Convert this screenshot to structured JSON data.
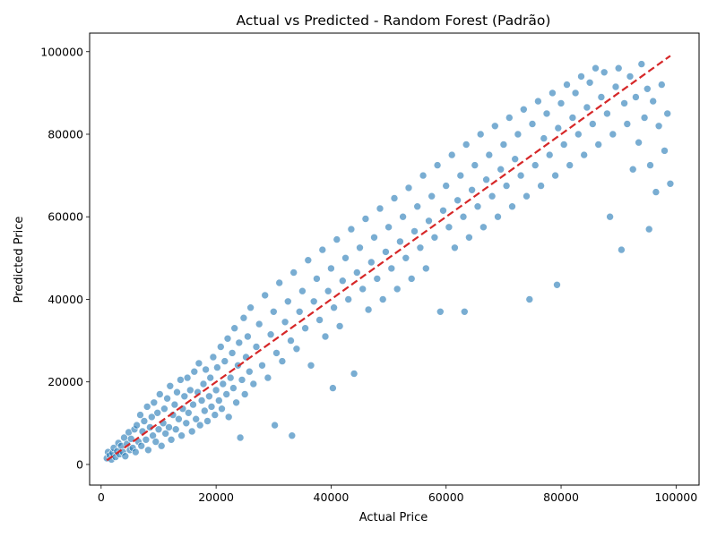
{
  "chart_data": {
    "type": "scatter",
    "title": "Actual vs Predicted - Random Forest (Padrão)",
    "xlabel": "Actual Price",
    "ylabel": "Predicted Price",
    "xlim": [
      -2000,
      104000
    ],
    "ylim": [
      -5000,
      104500
    ],
    "xticks": [
      0,
      20000,
      40000,
      60000,
      80000,
      100000
    ],
    "yticks": [
      0,
      20000,
      40000,
      60000,
      80000,
      100000
    ],
    "xtick_labels": [
      "0",
      "20000",
      "40000",
      "60000",
      "80000",
      "100000"
    ],
    "ytick_labels": [
      "0",
      "20000",
      "40000",
      "60000",
      "80000",
      "100000"
    ],
    "grid": false,
    "point_color": "#1f77b4",
    "reference_line": {
      "x": [
        1000,
        99000
      ],
      "y": [
        1000,
        99000
      ],
      "color": "#d62728",
      "style": "dashed"
    },
    "series": [
      {
        "points": [
          [
            1000,
            1500
          ],
          [
            1200,
            3000
          ],
          [
            1500,
            2200
          ],
          [
            1800,
            1200
          ],
          [
            2000,
            2800
          ],
          [
            2200,
            4000
          ],
          [
            2500,
            1800
          ],
          [
            2800,
            3200
          ],
          [
            3000,
            5200
          ],
          [
            3200,
            2500
          ],
          [
            3500,
            4500
          ],
          [
            3800,
            3000
          ],
          [
            4000,
            6500
          ],
          [
            4200,
            2000
          ],
          [
            4500,
            5000
          ],
          [
            4800,
            7800
          ],
          [
            5000,
            3500
          ],
          [
            5200,
            6200
          ],
          [
            5500,
            4000
          ],
          [
            5800,
            8500
          ],
          [
            6000,
            3000
          ],
          [
            6200,
            9500
          ],
          [
            6500,
            5500
          ],
          [
            6800,
            12000
          ],
          [
            7000,
            4500
          ],
          [
            7200,
            8000
          ],
          [
            7500,
            10500
          ],
          [
            7800,
            6000
          ],
          [
            8000,
            14000
          ],
          [
            8200,
            3500
          ],
          [
            8500,
            9000
          ],
          [
            8800,
            11500
          ],
          [
            9000,
            7000
          ],
          [
            9200,
            15000
          ],
          [
            9500,
            5500
          ],
          [
            9800,
            12500
          ],
          [
            10000,
            8500
          ],
          [
            10200,
            17000
          ],
          [
            10500,
            4500
          ],
          [
            10800,
            10000
          ],
          [
            11000,
            13500
          ],
          [
            11200,
            7500
          ],
          [
            11500,
            16000
          ],
          [
            11800,
            9000
          ],
          [
            12000,
            19000
          ],
          [
            12200,
            6000
          ],
          [
            12500,
            12000
          ],
          [
            12800,
            14500
          ],
          [
            13000,
            8500
          ],
          [
            13200,
            17500
          ],
          [
            13500,
            11000
          ],
          [
            13800,
            20500
          ],
          [
            14000,
            7000
          ],
          [
            14200,
            13500
          ],
          [
            14500,
            16500
          ],
          [
            14800,
            10000
          ],
          [
            15000,
            21000
          ],
          [
            15200,
            12500
          ],
          [
            15500,
            18000
          ],
          [
            15800,
            8000
          ],
          [
            16000,
            14500
          ],
          [
            16200,
            22500
          ],
          [
            16500,
            11000
          ],
          [
            16800,
            17500
          ],
          [
            17000,
            24500
          ],
          [
            17200,
            9500
          ],
          [
            17500,
            15500
          ],
          [
            17800,
            19500
          ],
          [
            18000,
            13000
          ],
          [
            18200,
            23000
          ],
          [
            18500,
            10500
          ],
          [
            18800,
            16500
          ],
          [
            19000,
            21000
          ],
          [
            19200,
            14000
          ],
          [
            19500,
            26000
          ],
          [
            19800,
            12000
          ],
          [
            20000,
            18000
          ],
          [
            20200,
            23500
          ],
          [
            20500,
            15500
          ],
          [
            20800,
            28500
          ],
          [
            21000,
            13500
          ],
          [
            21200,
            19500
          ],
          [
            21500,
            25000
          ],
          [
            21800,
            17000
          ],
          [
            22000,
            30500
          ],
          [
            22200,
            11500
          ],
          [
            22500,
            21000
          ],
          [
            22800,
            27000
          ],
          [
            23000,
            18500
          ],
          [
            23200,
            33000
          ],
          [
            23500,
            15000
          ],
          [
            23800,
            24000
          ],
          [
            24000,
            29500
          ],
          [
            24200,
            6500
          ],
          [
            24500,
            20500
          ],
          [
            24800,
            35500
          ],
          [
            25000,
            17000
          ],
          [
            25200,
            26000
          ],
          [
            25500,
            31000
          ],
          [
            25800,
            22500
          ],
          [
            26000,
            38000
          ],
          [
            26500,
            19500
          ],
          [
            27000,
            28500
          ],
          [
            27500,
            34000
          ],
          [
            28000,
            24000
          ],
          [
            28500,
            41000
          ],
          [
            29000,
            21000
          ],
          [
            29500,
            31500
          ],
          [
            30000,
            37000
          ],
          [
            30200,
            9500
          ],
          [
            30500,
            27000
          ],
          [
            31000,
            44000
          ],
          [
            31500,
            25000
          ],
          [
            32000,
            34500
          ],
          [
            32500,
            39500
          ],
          [
            33000,
            30000
          ],
          [
            33200,
            7000
          ],
          [
            33500,
            46500
          ],
          [
            34000,
            28000
          ],
          [
            34500,
            37000
          ],
          [
            35000,
            42000
          ],
          [
            35500,
            33000
          ],
          [
            36000,
            49500
          ],
          [
            36500,
            24000
          ],
          [
            37000,
            39500
          ],
          [
            37500,
            45000
          ],
          [
            38000,
            35000
          ],
          [
            38500,
            52000
          ],
          [
            39000,
            31000
          ],
          [
            39500,
            42000
          ],
          [
            40000,
            47500
          ],
          [
            40300,
            18500
          ],
          [
            40500,
            38000
          ],
          [
            41000,
            54500
          ],
          [
            41500,
            33500
          ],
          [
            42000,
            44500
          ],
          [
            42500,
            50000
          ],
          [
            43000,
            40000
          ],
          [
            43500,
            57000
          ],
          [
            44000,
            22000
          ],
          [
            44500,
            46500
          ],
          [
            45000,
            52500
          ],
          [
            45500,
            42500
          ],
          [
            46000,
            59500
          ],
          [
            46500,
            37500
          ],
          [
            47000,
            49000
          ],
          [
            47500,
            55000
          ],
          [
            48000,
            45000
          ],
          [
            48500,
            62000
          ],
          [
            49000,
            40000
          ],
          [
            49500,
            51500
          ],
          [
            50000,
            57500
          ],
          [
            50500,
            47500
          ],
          [
            51000,
            64500
          ],
          [
            51500,
            42500
          ],
          [
            52000,
            54000
          ],
          [
            52500,
            60000
          ],
          [
            53000,
            50000
          ],
          [
            53500,
            67000
          ],
          [
            54000,
            45000
          ],
          [
            54500,
            56500
          ],
          [
            55000,
            62500
          ],
          [
            55500,
            52500
          ],
          [
            56000,
            70000
          ],
          [
            56500,
            47500
          ],
          [
            57000,
            59000
          ],
          [
            57500,
            65000
          ],
          [
            58000,
            55000
          ],
          [
            58500,
            72500
          ],
          [
            59000,
            37000
          ],
          [
            59500,
            61500
          ],
          [
            60000,
            67500
          ],
          [
            60500,
            57500
          ],
          [
            61000,
            75000
          ],
          [
            61500,
            52500
          ],
          [
            62000,
            64000
          ],
          [
            62500,
            70000
          ],
          [
            63000,
            60000
          ],
          [
            63200,
            37000
          ],
          [
            63500,
            77500
          ],
          [
            64000,
            55000
          ],
          [
            64500,
            66500
          ],
          [
            65000,
            72500
          ],
          [
            65500,
            62500
          ],
          [
            66000,
            80000
          ],
          [
            66500,
            57500
          ],
          [
            67000,
            69000
          ],
          [
            67500,
            75000
          ],
          [
            68000,
            65000
          ],
          [
            68500,
            82000
          ],
          [
            69000,
            60000
          ],
          [
            69500,
            71500
          ],
          [
            70000,
            77500
          ],
          [
            70500,
            67500
          ],
          [
            71000,
            84000
          ],
          [
            71500,
            62500
          ],
          [
            72000,
            74000
          ],
          [
            72500,
            80000
          ],
          [
            73000,
            70000
          ],
          [
            73500,
            86000
          ],
          [
            74000,
            65000
          ],
          [
            74500,
            40000
          ],
          [
            75000,
            82500
          ],
          [
            75500,
            72500
          ],
          [
            76000,
            88000
          ],
          [
            76500,
            67500
          ],
          [
            77000,
            79000
          ],
          [
            77500,
            85000
          ],
          [
            78000,
            75000
          ],
          [
            78500,
            90000
          ],
          [
            79000,
            70000
          ],
          [
            79300,
            43500
          ],
          [
            79500,
            81500
          ],
          [
            80000,
            87500
          ],
          [
            80500,
            77500
          ],
          [
            81000,
            92000
          ],
          [
            81500,
            72500
          ],
          [
            82000,
            84000
          ],
          [
            82500,
            90000
          ],
          [
            83000,
            80000
          ],
          [
            83500,
            94000
          ],
          [
            84000,
            75000
          ],
          [
            84500,
            86500
          ],
          [
            85000,
            92500
          ],
          [
            85500,
            82500
          ],
          [
            86000,
            96000
          ],
          [
            86500,
            77500
          ],
          [
            87000,
            89000
          ],
          [
            87500,
            95000
          ],
          [
            88000,
            85000
          ],
          [
            88500,
            60000
          ],
          [
            89000,
            80000
          ],
          [
            89500,
            91500
          ],
          [
            90000,
            96000
          ],
          [
            90500,
            52000
          ],
          [
            91000,
            87500
          ],
          [
            91500,
            82500
          ],
          [
            92000,
            94000
          ],
          [
            92500,
            71500
          ],
          [
            93000,
            89000
          ],
          [
            93500,
            78000
          ],
          [
            94000,
            97000
          ],
          [
            94500,
            84000
          ],
          [
            95000,
            91000
          ],
          [
            95300,
            57000
          ],
          [
            95500,
            72500
          ],
          [
            96000,
            88000
          ],
          [
            96500,
            66000
          ],
          [
            97000,
            82000
          ],
          [
            97500,
            92000
          ],
          [
            98000,
            76000
          ],
          [
            98500,
            85000
          ],
          [
            99000,
            68000
          ]
        ]
      }
    ]
  }
}
